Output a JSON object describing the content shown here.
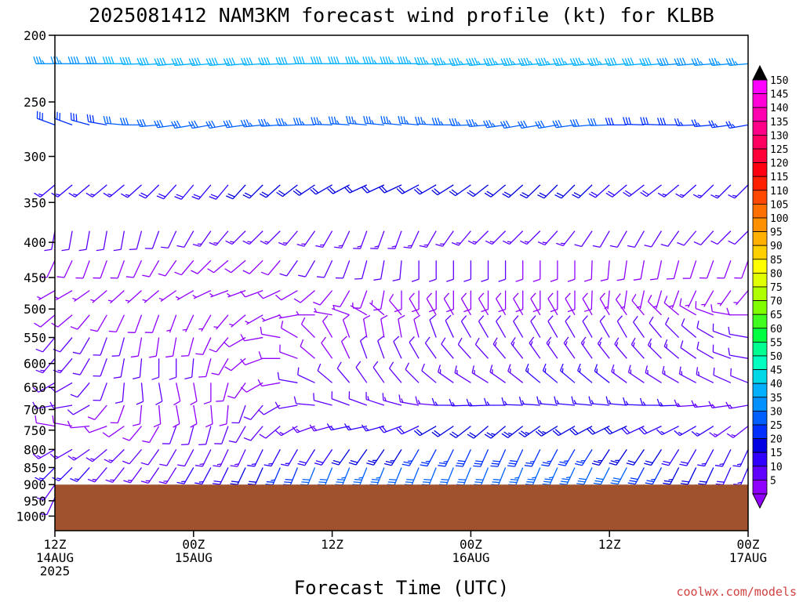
{
  "chart_data": {
    "type": "wind-barb-profile",
    "title": "2025081412 NAM3KM forecast wind profile (kt) for KLBB",
    "xlabel": "Forecast Time (UTC)",
    "ylabel": "",
    "credit": "coolwx.com/models",
    "y_axis": {
      "scale": "log-pressure",
      "range_hPa": [
        1050,
        200
      ],
      "ticks": [
        200,
        250,
        300,
        350,
        400,
        450,
        500,
        550,
        600,
        650,
        700,
        750,
        800,
        850,
        900,
        950,
        1000
      ]
    },
    "x_axis": {
      "range_hours": [
        0,
        60
      ],
      "ticks": [
        {
          "hour": 0,
          "lines": [
            "12Z",
            "14AUG",
            "2025"
          ]
        },
        {
          "hour": 12,
          "lines": [
            "00Z",
            "15AUG"
          ]
        },
        {
          "hour": 24,
          "lines": [
            "12Z"
          ]
        },
        {
          "hour": 36,
          "lines": [
            "00Z",
            "16AUG"
          ]
        },
        {
          "hour": 48,
          "lines": [
            "12Z"
          ]
        },
        {
          "hour": 60,
          "lines": [
            "00Z",
            "17AUG"
          ]
        }
      ]
    },
    "surface_pressure_hPa": 900,
    "colorbar": {
      "labels": [
        "150",
        "145",
        "140",
        "135",
        "130",
        "125",
        "120",
        "115",
        "110",
        "105",
        "100",
        "95",
        "90",
        "85",
        "80",
        "75",
        "70",
        "65",
        "60",
        "55",
        "50",
        "45",
        "40",
        "35",
        "30",
        "25",
        "20",
        "15",
        "10",
        "5"
      ],
      "colors": [
        "#ff00ff",
        "#ff00d8",
        "#ff00b0",
        "#ff0088",
        "#ff0060",
        "#ff0038",
        "#ff0010",
        "#ff2000",
        "#ff4800",
        "#ff7000",
        "#ff9000",
        "#ffb000",
        "#ffd000",
        "#ffff00",
        "#e0ff00",
        "#b0ff00",
        "#80ff00",
        "#40ff20",
        "#00ff40",
        "#00ff90",
        "#00ffc0",
        "#00d8e8",
        "#00b0ff",
        "#0090ff",
        "#0060ff",
        "#0030ff",
        "#0000e0",
        "#3000ff",
        "#6000ff",
        "#9000ff"
      ]
    },
    "levels_hPa": [
      220,
      270,
      330,
      385,
      425,
      470,
      510,
      550,
      590,
      640,
      690,
      740,
      800,
      850,
      900,
      940
    ],
    "times_hours": [
      0,
      1.5,
      3,
      4.5,
      6,
      7.5,
      9,
      10.5,
      12,
      13.5,
      15,
      16.5,
      18,
      19.5,
      21,
      22.5,
      24,
      25.5,
      27,
      28.5,
      30,
      31.5,
      33,
      34.5,
      36,
      37.5,
      39,
      40.5,
      42,
      43.5,
      45,
      46.5,
      48,
      49.5,
      51,
      52.5,
      54,
      55.5,
      57,
      58.5,
      60
    ],
    "wind_speed_kt": [
      [
        36,
        37,
        38,
        39,
        40,
        40,
        40,
        40,
        40,
        40,
        40,
        40,
        41,
        41,
        41,
        42,
        42,
        42,
        43,
        43,
        43,
        44,
        44,
        44,
        44,
        44,
        44,
        44,
        44,
        44,
        44,
        43,
        43,
        42,
        41,
        40,
        39,
        38,
        37,
        36,
        35
      ],
      [
        28,
        28,
        29,
        29,
        30,
        30,
        31,
        31,
        31,
        32,
        32,
        32,
        33,
        33,
        33,
        33,
        33,
        34,
        34,
        34,
        34,
        34,
        34,
        34,
        34,
        33,
        33,
        32,
        32,
        31,
        31,
        30,
        30,
        29,
        29,
        28,
        28,
        27,
        27,
        26,
        26
      ],
      [
        15,
        15,
        16,
        16,
        17,
        17,
        18,
        18,
        19,
        19,
        19,
        20,
        20,
        20,
        21,
        21,
        21,
        22,
        22,
        22,
        22,
        22,
        22,
        22,
        22,
        22,
        21,
        21,
        21,
        20,
        20,
        20,
        19,
        19,
        18,
        18,
        17,
        17,
        16,
        16,
        15
      ],
      [
        10,
        10,
        11,
        11,
        11,
        12,
        12,
        12,
        12,
        13,
        13,
        13,
        13,
        14,
        14,
        14,
        14,
        14,
        14,
        14,
        14,
        14,
        14,
        14,
        14,
        14,
        14,
        13,
        13,
        13,
        13,
        12,
        12,
        12,
        12,
        11,
        11,
        11,
        10,
        10,
        10
      ],
      [
        8,
        8,
        8,
        8,
        9,
        9,
        9,
        9,
        9,
        9,
        9,
        9,
        9,
        9,
        10,
        10,
        10,
        10,
        10,
        10,
        10,
        10,
        10,
        10,
        10,
        10,
        10,
        9,
        9,
        9,
        9,
        9,
        9,
        9,
        8,
        8,
        8,
        8,
        8,
        8,
        8
      ],
      [
        7,
        7,
        7,
        7,
        7,
        7,
        7,
        7,
        7,
        7,
        7,
        7,
        8,
        8,
        8,
        8,
        8,
        8,
        8,
        8,
        8,
        8,
        8,
        8,
        8,
        8,
        8,
        8,
        8,
        8,
        8,
        8,
        7,
        7,
        7,
        7,
        7,
        7,
        7,
        7,
        7
      ],
      [
        9,
        9,
        9,
        8,
        8,
        8,
        8,
        7,
        7,
        7,
        7,
        7,
        7,
        7,
        7,
        7,
        7,
        7,
        7,
        7,
        8,
        8,
        8,
        8,
        8,
        8,
        9,
        9,
        9,
        9,
        9,
        9,
        9,
        9,
        9,
        9,
        9,
        9,
        9,
        9,
        9
      ],
      [
        11,
        11,
        10,
        10,
        10,
        9,
        9,
        9,
        8,
        8,
        8,
        8,
        8,
        8,
        8,
        8,
        8,
        8,
        8,
        9,
        9,
        9,
        10,
        10,
        10,
        11,
        11,
        11,
        12,
        12,
        12,
        12,
        12,
        12,
        12,
        12,
        11,
        11,
        11,
        11,
        11
      ],
      [
        13,
        13,
        12,
        12,
        11,
        11,
        10,
        10,
        10,
        9,
        9,
        9,
        9,
        9,
        9,
        9,
        9,
        9,
        10,
        10,
        10,
        11,
        11,
        12,
        12,
        12,
        13,
        13,
        14,
        14,
        14,
        14,
        14,
        14,
        13,
        13,
        13,
        12,
        12,
        12,
        12
      ],
      [
        12,
        12,
        11,
        11,
        10,
        10,
        10,
        9,
        9,
        9,
        9,
        9,
        9,
        9,
        10,
        10,
        10,
        10,
        11,
        11,
        11,
        12,
        12,
        13,
        13,
        13,
        14,
        14,
        15,
        15,
        15,
        15,
        15,
        14,
        14,
        14,
        13,
        13,
        13,
        12,
        12
      ],
      [
        10,
        10,
        10,
        9,
        9,
        9,
        9,
        9,
        9,
        9,
        9,
        10,
        10,
        10,
        11,
        11,
        11,
        12,
        12,
        13,
        13,
        14,
        14,
        15,
        15,
        16,
        16,
        17,
        17,
        17,
        17,
        17,
        16,
        16,
        16,
        15,
        15,
        14,
        14,
        13,
        13
      ],
      [
        9,
        9,
        9,
        9,
        9,
        9,
        9,
        10,
        10,
        10,
        11,
        11,
        12,
        12,
        13,
        13,
        14,
        15,
        16,
        17,
        18,
        19,
        20,
        21,
        22,
        22,
        23,
        23,
        23,
        23,
        22,
        22,
        21,
        20,
        19,
        18,
        17,
        16,
        15,
        14,
        13
      ],
      [
        14,
        14,
        13,
        13,
        13,
        12,
        12,
        12,
        12,
        13,
        13,
        14,
        15,
        16,
        17,
        18,
        19,
        20,
        22,
        23,
        24,
        25,
        26,
        27,
        28,
        28,
        28,
        28,
        27,
        27,
        26,
        25,
        24,
        23,
        22,
        20,
        19,
        18,
        17,
        16,
        15
      ],
      [
        15,
        15,
        15,
        14,
        14,
        14,
        14,
        14,
        15,
        16,
        18,
        20,
        22,
        25,
        28,
        30,
        32,
        33,
        33,
        33,
        32,
        31,
        30,
        30,
        30,
        31,
        32,
        33,
        34,
        34,
        33,
        32,
        31,
        30,
        28,
        26,
        24,
        22,
        20,
        18,
        17
      ],
      [
        13,
        13,
        13,
        13,
        13,
        13,
        13,
        13,
        14,
        15,
        16,
        18,
        20,
        23,
        26,
        28,
        30,
        31,
        31,
        31,
        30,
        29,
        28,
        28,
        28,
        29,
        30,
        31,
        32,
        32,
        31,
        30,
        29,
        28,
        26,
        24,
        22,
        20,
        18,
        16,
        15
      ],
      [
        12,
        12,
        12,
        12,
        12,
        12,
        12,
        12,
        13,
        14,
        15,
        17,
        19,
        22,
        24,
        26,
        28,
        29,
        29,
        29,
        28,
        27,
        26,
        26,
        26,
        27,
        28,
        29,
        30,
        30,
        29,
        28,
        27,
        26,
        24,
        22,
        20,
        18,
        16,
        14,
        13
      ]
    ],
    "wind_dir_deg": [
      [
        270,
        270,
        270,
        270,
        270,
        268,
        266,
        265,
        265,
        265,
        265,
        265,
        266,
        267,
        268,
        270,
        270,
        270,
        270,
        270,
        270,
        270,
        268,
        266,
        265,
        265,
        265,
        265,
        265,
        265,
        265,
        265,
        265,
        265,
        265,
        265,
        265,
        265,
        265,
        265,
        265
      ],
      [
        290,
        290,
        285,
        280,
        275,
        270,
        265,
        262,
        260,
        260,
        260,
        262,
        264,
        266,
        268,
        270,
        272,
        274,
        275,
        275,
        275,
        275,
        273,
        270,
        268,
        265,
        262,
        260,
        260,
        260,
        262,
        265,
        268,
        270,
        272,
        272,
        270,
        268,
        265,
        262,
        260
      ],
      [
        230,
        230,
        230,
        230,
        230,
        228,
        225,
        222,
        220,
        220,
        220,
        222,
        225,
        228,
        232,
        236,
        240,
        242,
        245,
        245,
        245,
        242,
        240,
        238,
        235,
        232,
        230,
        228,
        226,
        225,
        225,
        226,
        228,
        230,
        232,
        232,
        230,
        228,
        226,
        225,
        225
      ],
      [
        190,
        190,
        190,
        190,
        190,
        195,
        200,
        205,
        210,
        215,
        220,
        225,
        225,
        225,
        220,
        215,
        210,
        205,
        200,
        200,
        200,
        205,
        210,
        215,
        220,
        225,
        225,
        225,
        225,
        222,
        218,
        214,
        210,
        210,
        210,
        212,
        215,
        220,
        222,
        225,
        225
      ],
      [
        205,
        205,
        200,
        200,
        200,
        205,
        210,
        215,
        220,
        225,
        230,
        230,
        225,
        220,
        215,
        210,
        205,
        200,
        195,
        190,
        185,
        180,
        180,
        180,
        180,
        180,
        180,
        180,
        180,
        180,
        180,
        182,
        185,
        188,
        190,
        192,
        195,
        198,
        200,
        200,
        200
      ],
      [
        240,
        240,
        235,
        230,
        228,
        228,
        230,
        235,
        240,
        245,
        250,
        250,
        250,
        245,
        240,
        230,
        220,
        210,
        200,
        190,
        180,
        180,
        180,
        180,
        180,
        180,
        180,
        180,
        180,
        180,
        180,
        182,
        185,
        188,
        192,
        196,
        200,
        205,
        210,
        215,
        220
      ],
      [
        230,
        230,
        220,
        210,
        205,
        200,
        200,
        200,
        205,
        210,
        220,
        230,
        240,
        250,
        260,
        270,
        280,
        290,
        300,
        310,
        320,
        330,
        330,
        330,
        330,
        330,
        330,
        330,
        330,
        330,
        330,
        330,
        330,
        325,
        320,
        315,
        310,
        300,
        290,
        280,
        270
      ],
      [
        220,
        220,
        210,
        200,
        195,
        190,
        188,
        190,
        195,
        205,
        220,
        240,
        260,
        280,
        300,
        315,
        330,
        340,
        350,
        350,
        350,
        345,
        340,
        335,
        330,
        330,
        330,
        330,
        330,
        330,
        330,
        330,
        330,
        330,
        325,
        320,
        315,
        310,
        300,
        290,
        280
      ],
      [
        220,
        220,
        210,
        200,
        190,
        185,
        180,
        180,
        185,
        195,
        210,
        230,
        250,
        270,
        290,
        310,
        325,
        335,
        340,
        340,
        335,
        330,
        325,
        320,
        318,
        318,
        320,
        322,
        325,
        325,
        325,
        325,
        322,
        320,
        318,
        315,
        310,
        305,
        300,
        290,
        280
      ],
      [
        240,
        240,
        220,
        200,
        185,
        175,
        170,
        168,
        170,
        180,
        195,
        215,
        240,
        260,
        280,
        295,
        310,
        320,
        325,
        325,
        320,
        315,
        310,
        305,
        302,
        302,
        305,
        308,
        310,
        310,
        310,
        310,
        308,
        306,
        304,
        302,
        300,
        298,
        296,
        294,
        292
      ],
      [
        260,
        260,
        240,
        220,
        200,
        185,
        175,
        170,
        170,
        175,
        185,
        200,
        220,
        240,
        260,
        275,
        285,
        290,
        290,
        288,
        285,
        280,
        275,
        270,
        268,
        268,
        270,
        272,
        274,
        275,
        275,
        275,
        275,
        275,
        272,
        270,
        268,
        266,
        264,
        262,
        260
      ],
      [
        280,
        280,
        265,
        250,
        235,
        220,
        210,
        200,
        195,
        195,
        200,
        210,
        220,
        230,
        240,
        250,
        255,
        258,
        258,
        255,
        250,
        245,
        240,
        236,
        232,
        230,
        230,
        232,
        235,
        238,
        240,
        242,
        244,
        245,
        245,
        245,
        243,
        240,
        238,
        235,
        232
      ],
      [
        240,
        240,
        235,
        230,
        225,
        220,
        215,
        210,
        208,
        206,
        205,
        205,
        206,
        208,
        210,
        212,
        214,
        215,
        215,
        214,
        212,
        210,
        208,
        206,
        205,
        204,
        204,
        205,
        206,
        208,
        210,
        212,
        213,
        214,
        214,
        213,
        212,
        210,
        208,
        206,
        205
      ],
      [
        225,
        225,
        222,
        220,
        218,
        216,
        214,
        212,
        210,
        208,
        206,
        205,
        204,
        203,
        202,
        202,
        202,
        202,
        202,
        202,
        202,
        202,
        202,
        202,
        202,
        202,
        202,
        202,
        203,
        204,
        205,
        206,
        207,
        208,
        208,
        208,
        207,
        206,
        205,
        204,
        203
      ],
      [
        215,
        215,
        213,
        212,
        211,
        210,
        209,
        208,
        207,
        206,
        205,
        204,
        203,
        202,
        201,
        200,
        200,
        200,
        200,
        200,
        200,
        200,
        200,
        200,
        200,
        200,
        200,
        200,
        201,
        202,
        203,
        204,
        205,
        206,
        206,
        206,
        205,
        204,
        203,
        202,
        201
      ],
      [
        205,
        205,
        204,
        203,
        202,
        201,
        200,
        199,
        198,
        197,
        196,
        195,
        195,
        195,
        195,
        195,
        195,
        195,
        195,
        195,
        195,
        195,
        195,
        195,
        195,
        195,
        195,
        195,
        196,
        197,
        198,
        199,
        200,
        201,
        201,
        201,
        200,
        199,
        198,
        197,
        196
      ]
    ]
  }
}
